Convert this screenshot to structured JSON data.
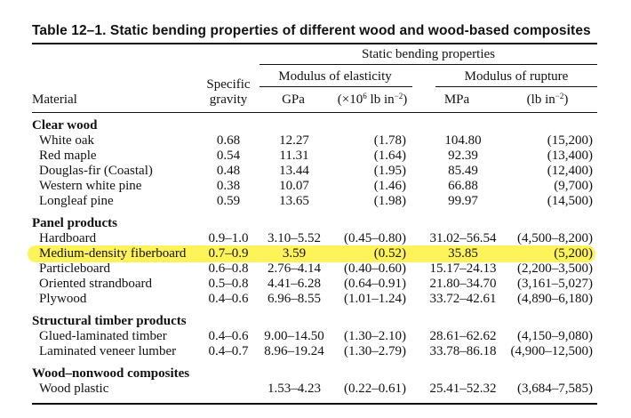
{
  "corner_mark": "'",
  "title": "Table 12–1. Static bending properties of different wood and wood-based composites",
  "headers": {
    "group": "Static bending properties",
    "moe": "Modulus of elasticity",
    "mor": "Modulus of rupture",
    "material": "Material",
    "sg_line1": "Specific",
    "sg_line2": "gravity",
    "gpa": "GPa",
    "moe_unit_pre": "(×10",
    "moe_unit_exp": "6",
    "moe_unit_mid": " lb in",
    "moe_unit_exp2": "−2",
    "moe_unit_post": ")",
    "mpa": "MPa",
    "mor_unit_pre": "(lb in",
    "mor_unit_exp": "−2",
    "mor_unit_post": ")"
  },
  "sections": {
    "clear_wood": "Clear wood",
    "panel": "Panel products",
    "structural": "Structural timber products",
    "nonwood": "Wood–nonwood composites"
  },
  "rows": [
    {
      "material": "White oak",
      "sg": "0.68",
      "gpa": "12.27",
      "psi": "(1.78)",
      "mpa": "104.80",
      "lb": "(15,200)"
    },
    {
      "material": "Red maple",
      "sg": "0.54",
      "gpa": "11.31",
      "psi": "(1.64)",
      "mpa": "92.39",
      "lb": "(13,400)"
    },
    {
      "material": "Douglas-fir (Coastal)",
      "sg": "0.48",
      "gpa": "13.44",
      "psi": "(1.95)",
      "mpa": "85.49",
      "lb": "(12,400)"
    },
    {
      "material": "Western white pine",
      "sg": "0.38",
      "gpa": "10.07",
      "psi": "(1.46)",
      "mpa": "66.88",
      "lb": "(9,700)"
    },
    {
      "material": "Longleaf pine",
      "sg": "0.59",
      "gpa": "13.65",
      "psi": "(1.98)",
      "mpa": "99.97",
      "lb": "(14,500)"
    },
    {
      "material": "Hardboard",
      "sg": "0.9–1.0",
      "gpa": "3.10–5.52",
      "psi": "(0.45–0.80)",
      "mpa": "31.02–56.54",
      "lb": "(4,500–8,200)"
    },
    {
      "material": "Medium-density fiberboard",
      "sg": "0.7–0.9",
      "gpa": "3.59",
      "psi": "(0.52)",
      "mpa": "35.85",
      "lb": "(5,200)"
    },
    {
      "material": "Particleboard",
      "sg": "0.6–0.8",
      "gpa": "2.76–4.14",
      "psi": "(0.40–0.60)",
      "mpa": "15.17–24.13",
      "lb": "(2,200–3,500)"
    },
    {
      "material": "Oriented strandboard",
      "sg": "0.5–0.8",
      "gpa": "4.41–6.28",
      "psi": "(0.64–0.91)",
      "mpa": "21.80–34.70",
      "lb": "(3,161–5,027)"
    },
    {
      "material": "Plywood",
      "sg": "0.4–0.6",
      "gpa": "6.96–8.55",
      "psi": "(1.01–1.24)",
      "mpa": "33.72–42.61",
      "lb": "(4,890–6,180)"
    },
    {
      "material": "Glued-laminated timber",
      "sg": "0.4–0.6",
      "gpa": "9.00–14.50",
      "psi": "(1.30–2.10)",
      "mpa": "28.61–62.62",
      "lb": "(4,150–9,080)"
    },
    {
      "material": "Laminated veneer lumber",
      "sg": "0.4–0.7",
      "gpa": "8.96–19.24",
      "psi": "(1.30–2.79)",
      "mpa": "33.78–86.18",
      "lb": "(4,900–12,500)"
    },
    {
      "material": "Wood plastic",
      "sg": "",
      "gpa": "1.53–4.23",
      "psi": "(0.22–0.61)",
      "mpa": "25.41–52.32",
      "lb": "(3,684–7,585)"
    }
  ],
  "highlight_color": "#fff35a"
}
